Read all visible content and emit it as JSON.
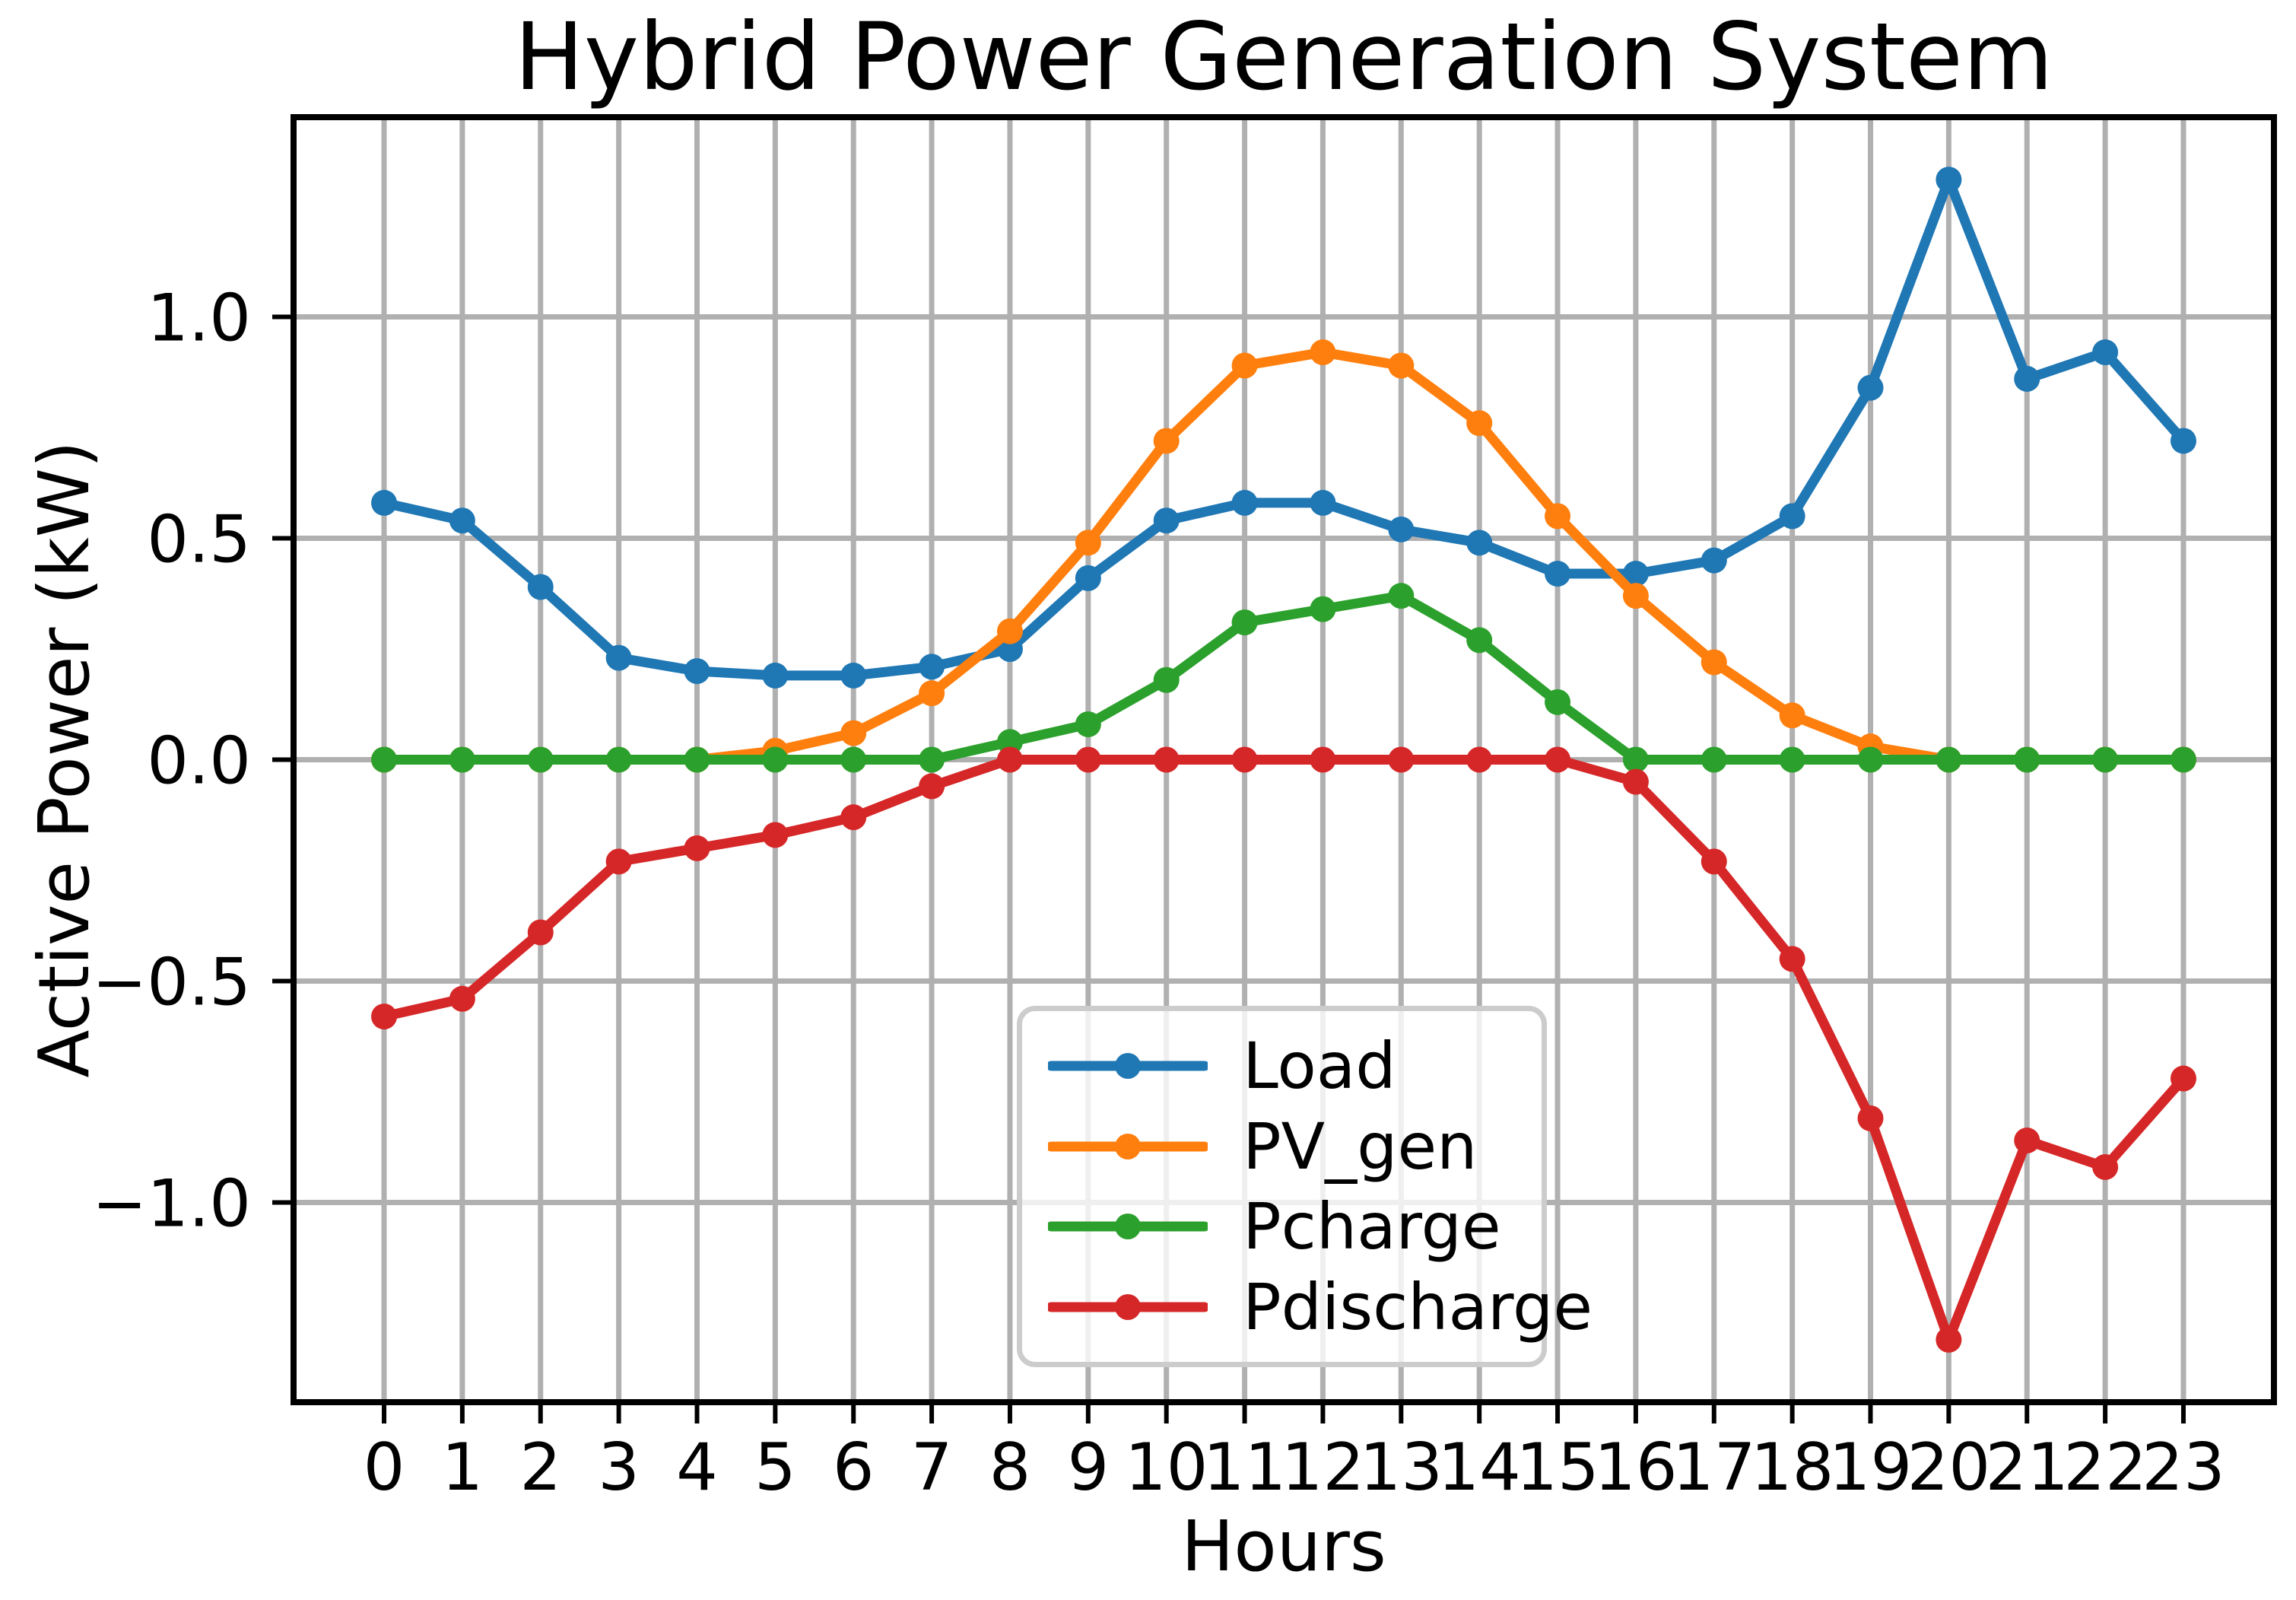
{
  "figure": {
    "title": "Hybrid Power Generation System",
    "xlabel": "Hours",
    "ylabel": "Active Power (kW)",
    "background": "#ffffff"
  },
  "chart_data": {
    "type": "line",
    "title": "Hybrid Power Generation System",
    "xlabel": "Hours",
    "ylabel": "Active Power (kW)",
    "grid": true,
    "x": [
      0,
      1,
      2,
      3,
      4,
      5,
      6,
      7,
      8,
      9,
      10,
      11,
      12,
      13,
      14,
      15,
      16,
      17,
      18,
      19,
      20,
      21,
      22,
      23
    ],
    "xtick_labels": [
      "0",
      "1",
      "2",
      "3",
      "4",
      "5",
      "6",
      "7",
      "8",
      "9",
      "10",
      "11",
      "12",
      "13",
      "14",
      "15",
      "16",
      "17",
      "18",
      "19",
      "20",
      "21",
      "22",
      "23"
    ],
    "yticks": [
      -1.0,
      -0.5,
      0.0,
      0.5,
      1.0
    ],
    "ytick_labels": [
      "−1.0",
      "−0.5",
      "0.0",
      "0.5",
      "1.0"
    ],
    "xlim": [
      -1.157,
      24.157
    ],
    "ylim": [
      -1.451,
      1.451
    ],
    "legend": {
      "location": "lower-center-inside",
      "entries": [
        "Load",
        "PV_gen",
        "Pcharge",
        "Pdischarge"
      ]
    },
    "series": [
      {
        "name": "Load",
        "color": "#1f77b4",
        "marker": "o",
        "values": [
          0.58,
          0.54,
          0.39,
          0.23,
          0.2,
          0.19,
          0.19,
          0.21,
          0.25,
          0.41,
          0.54,
          0.58,
          0.58,
          0.52,
          0.49,
          0.42,
          0.42,
          0.45,
          0.55,
          0.84,
          1.31,
          0.86,
          0.92,
          0.72
        ]
      },
      {
        "name": "PV_gen",
        "color": "#ff7f0e",
        "marker": "o",
        "values": [
          0,
          0,
          0,
          0,
          0,
          0.02,
          0.06,
          0.15,
          0.29,
          0.49,
          0.72,
          0.89,
          0.92,
          0.89,
          0.76,
          0.55,
          0.37,
          0.22,
          0.1,
          0.03,
          0,
          0,
          0,
          0
        ]
      },
      {
        "name": "Pcharge",
        "color": "#2ca02c",
        "marker": "o",
        "values": [
          0,
          0,
          0,
          0,
          0,
          0,
          0,
          0,
          0.04,
          0.08,
          0.18,
          0.31,
          0.34,
          0.37,
          0.27,
          0.13,
          0,
          0,
          0,
          0,
          0,
          0,
          0,
          0
        ]
      },
      {
        "name": "Pdischarge",
        "color": "#d62728",
        "marker": "o",
        "values": [
          -0.58,
          -0.54,
          -0.39,
          -0.23,
          -0.2,
          -0.17,
          -0.13,
          -0.06,
          0,
          0,
          0,
          0,
          0,
          0,
          0,
          0,
          -0.05,
          -0.23,
          -0.45,
          -0.81,
          -1.31,
          -0.86,
          -0.92,
          -0.72
        ]
      }
    ],
    "styles": {
      "grid_color": "#b0b0b0",
      "spine_color": "#000000",
      "legend_edge_color": "#cccccc",
      "tick_label_color": "#000000"
    }
  }
}
